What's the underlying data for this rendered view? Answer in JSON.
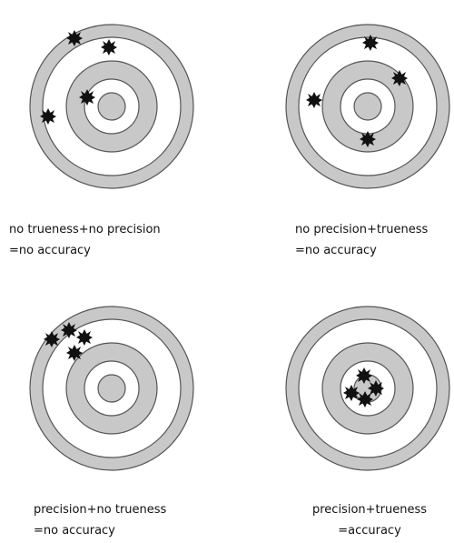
{
  "targets": [
    {
      "caption": [
        "no trueness+no precision",
        "=no accuracy"
      ]
    },
    {
      "caption": [
        "no precision+trueness",
        "=no accuracy"
      ]
    },
    {
      "caption": [
        "precision+no trueness",
        "=no accuracy"
      ]
    },
    {
      "caption": [
        "precision+trueness",
        "=accuracy"
      ]
    }
  ]
}
